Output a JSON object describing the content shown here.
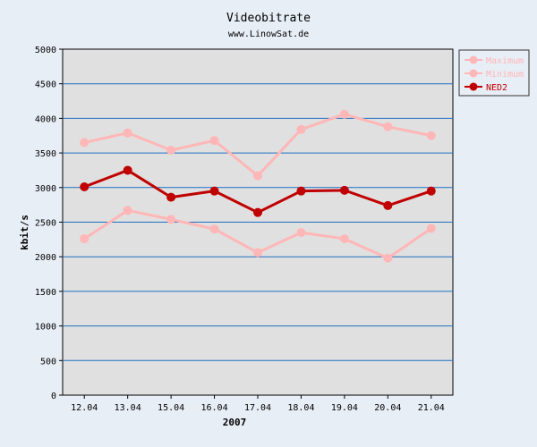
{
  "chart_data": {
    "type": "line",
    "title": "Videobitrate",
    "subtitle": "www.LinowSat.de",
    "xlabel": "2007",
    "ylabel": "kbit/s",
    "categories": [
      "12.04",
      "13.04",
      "15.04",
      "16.04",
      "17.04",
      "18.04",
      "19.04",
      "20.04",
      "21.04"
    ],
    "ylim": [
      0,
      5000
    ],
    "yticks": [
      "0",
      "500",
      "1000",
      "1500",
      "2000",
      "2500",
      "3000",
      "3500",
      "4000",
      "4500",
      "5000"
    ],
    "grid": "horizontal",
    "legend_position": "top-right",
    "series": [
      {
        "name": "Maximum",
        "color": "#ffb6b6",
        "values": [
          3650,
          3790,
          3540,
          3680,
          3170,
          3840,
          4060,
          3880,
          3750
        ]
      },
      {
        "name": "Minimum",
        "color": "#ffb6b6",
        "values": [
          2260,
          2670,
          2540,
          2400,
          2060,
          2350,
          2260,
          1980,
          2410
        ]
      },
      {
        "name": "NED2",
        "color": "#c00000",
        "values": [
          3010,
          3250,
          2860,
          2950,
          2640,
          2950,
          2960,
          2740,
          2950
        ]
      }
    ],
    "colors": {
      "background": "#e8eef6",
      "plot_area": "#e0e0e0",
      "grid": "#1f6fc0",
      "axis": "#000000"
    }
  }
}
